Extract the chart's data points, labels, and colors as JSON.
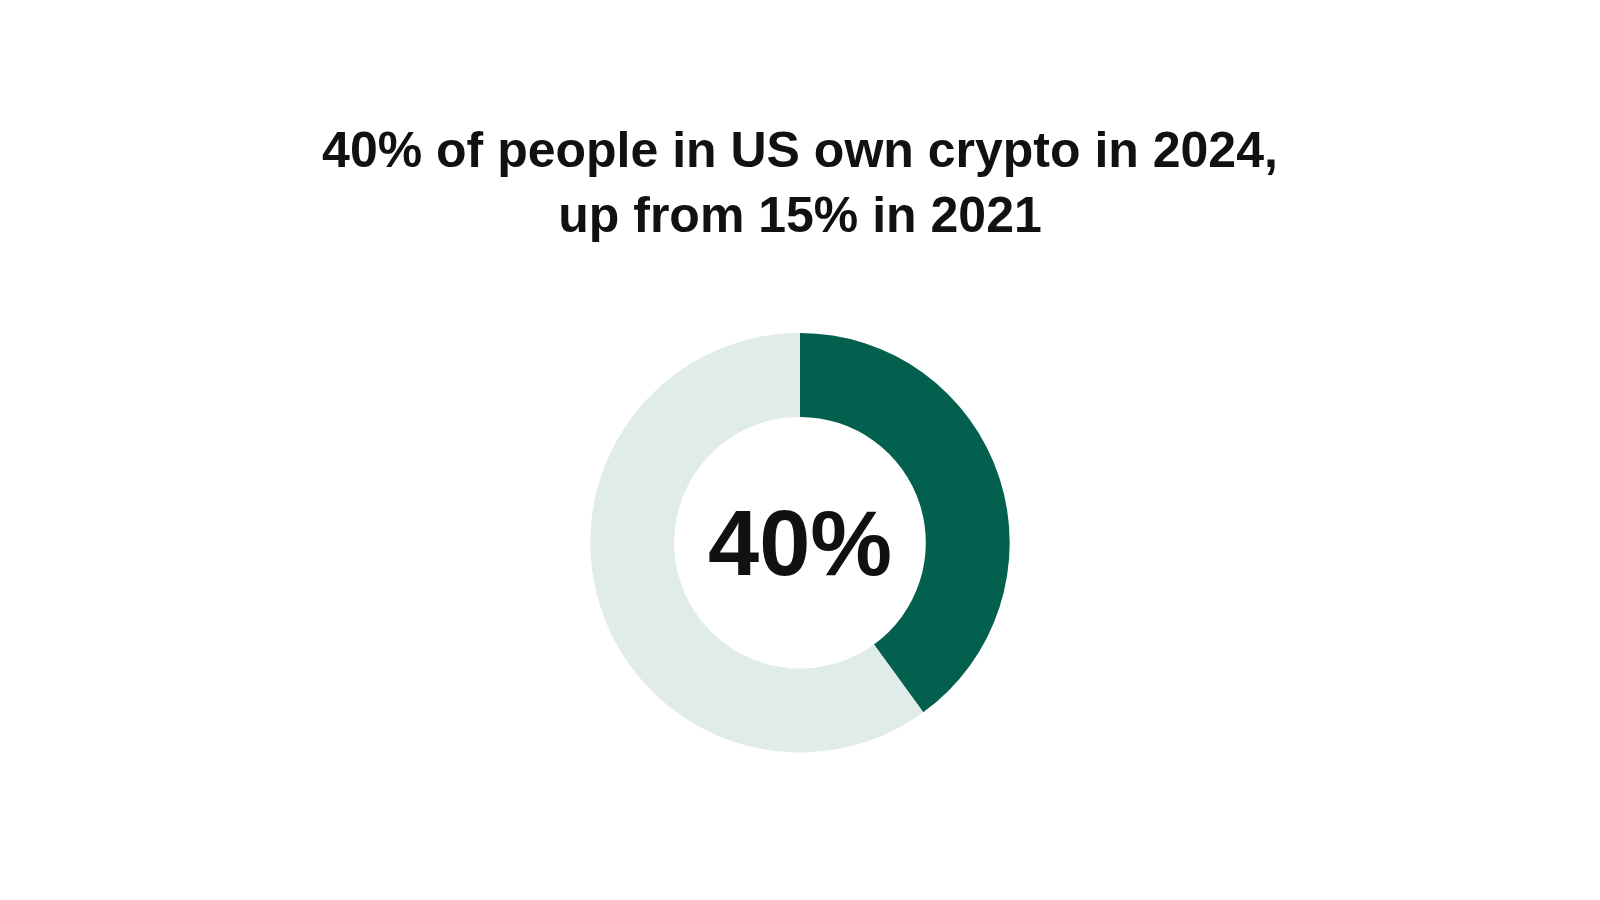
{
  "chart_data": {
    "type": "donut",
    "title": "40% of people in US own crypto in 2024,\nup from 15% in 2021",
    "categories": [
      null,
      null
    ],
    "values": [
      40,
      60
    ],
    "colors": [
      "#03604f",
      "#e0ece9"
    ],
    "annotations": [
      "40%"
    ],
    "legend": false
  }
}
